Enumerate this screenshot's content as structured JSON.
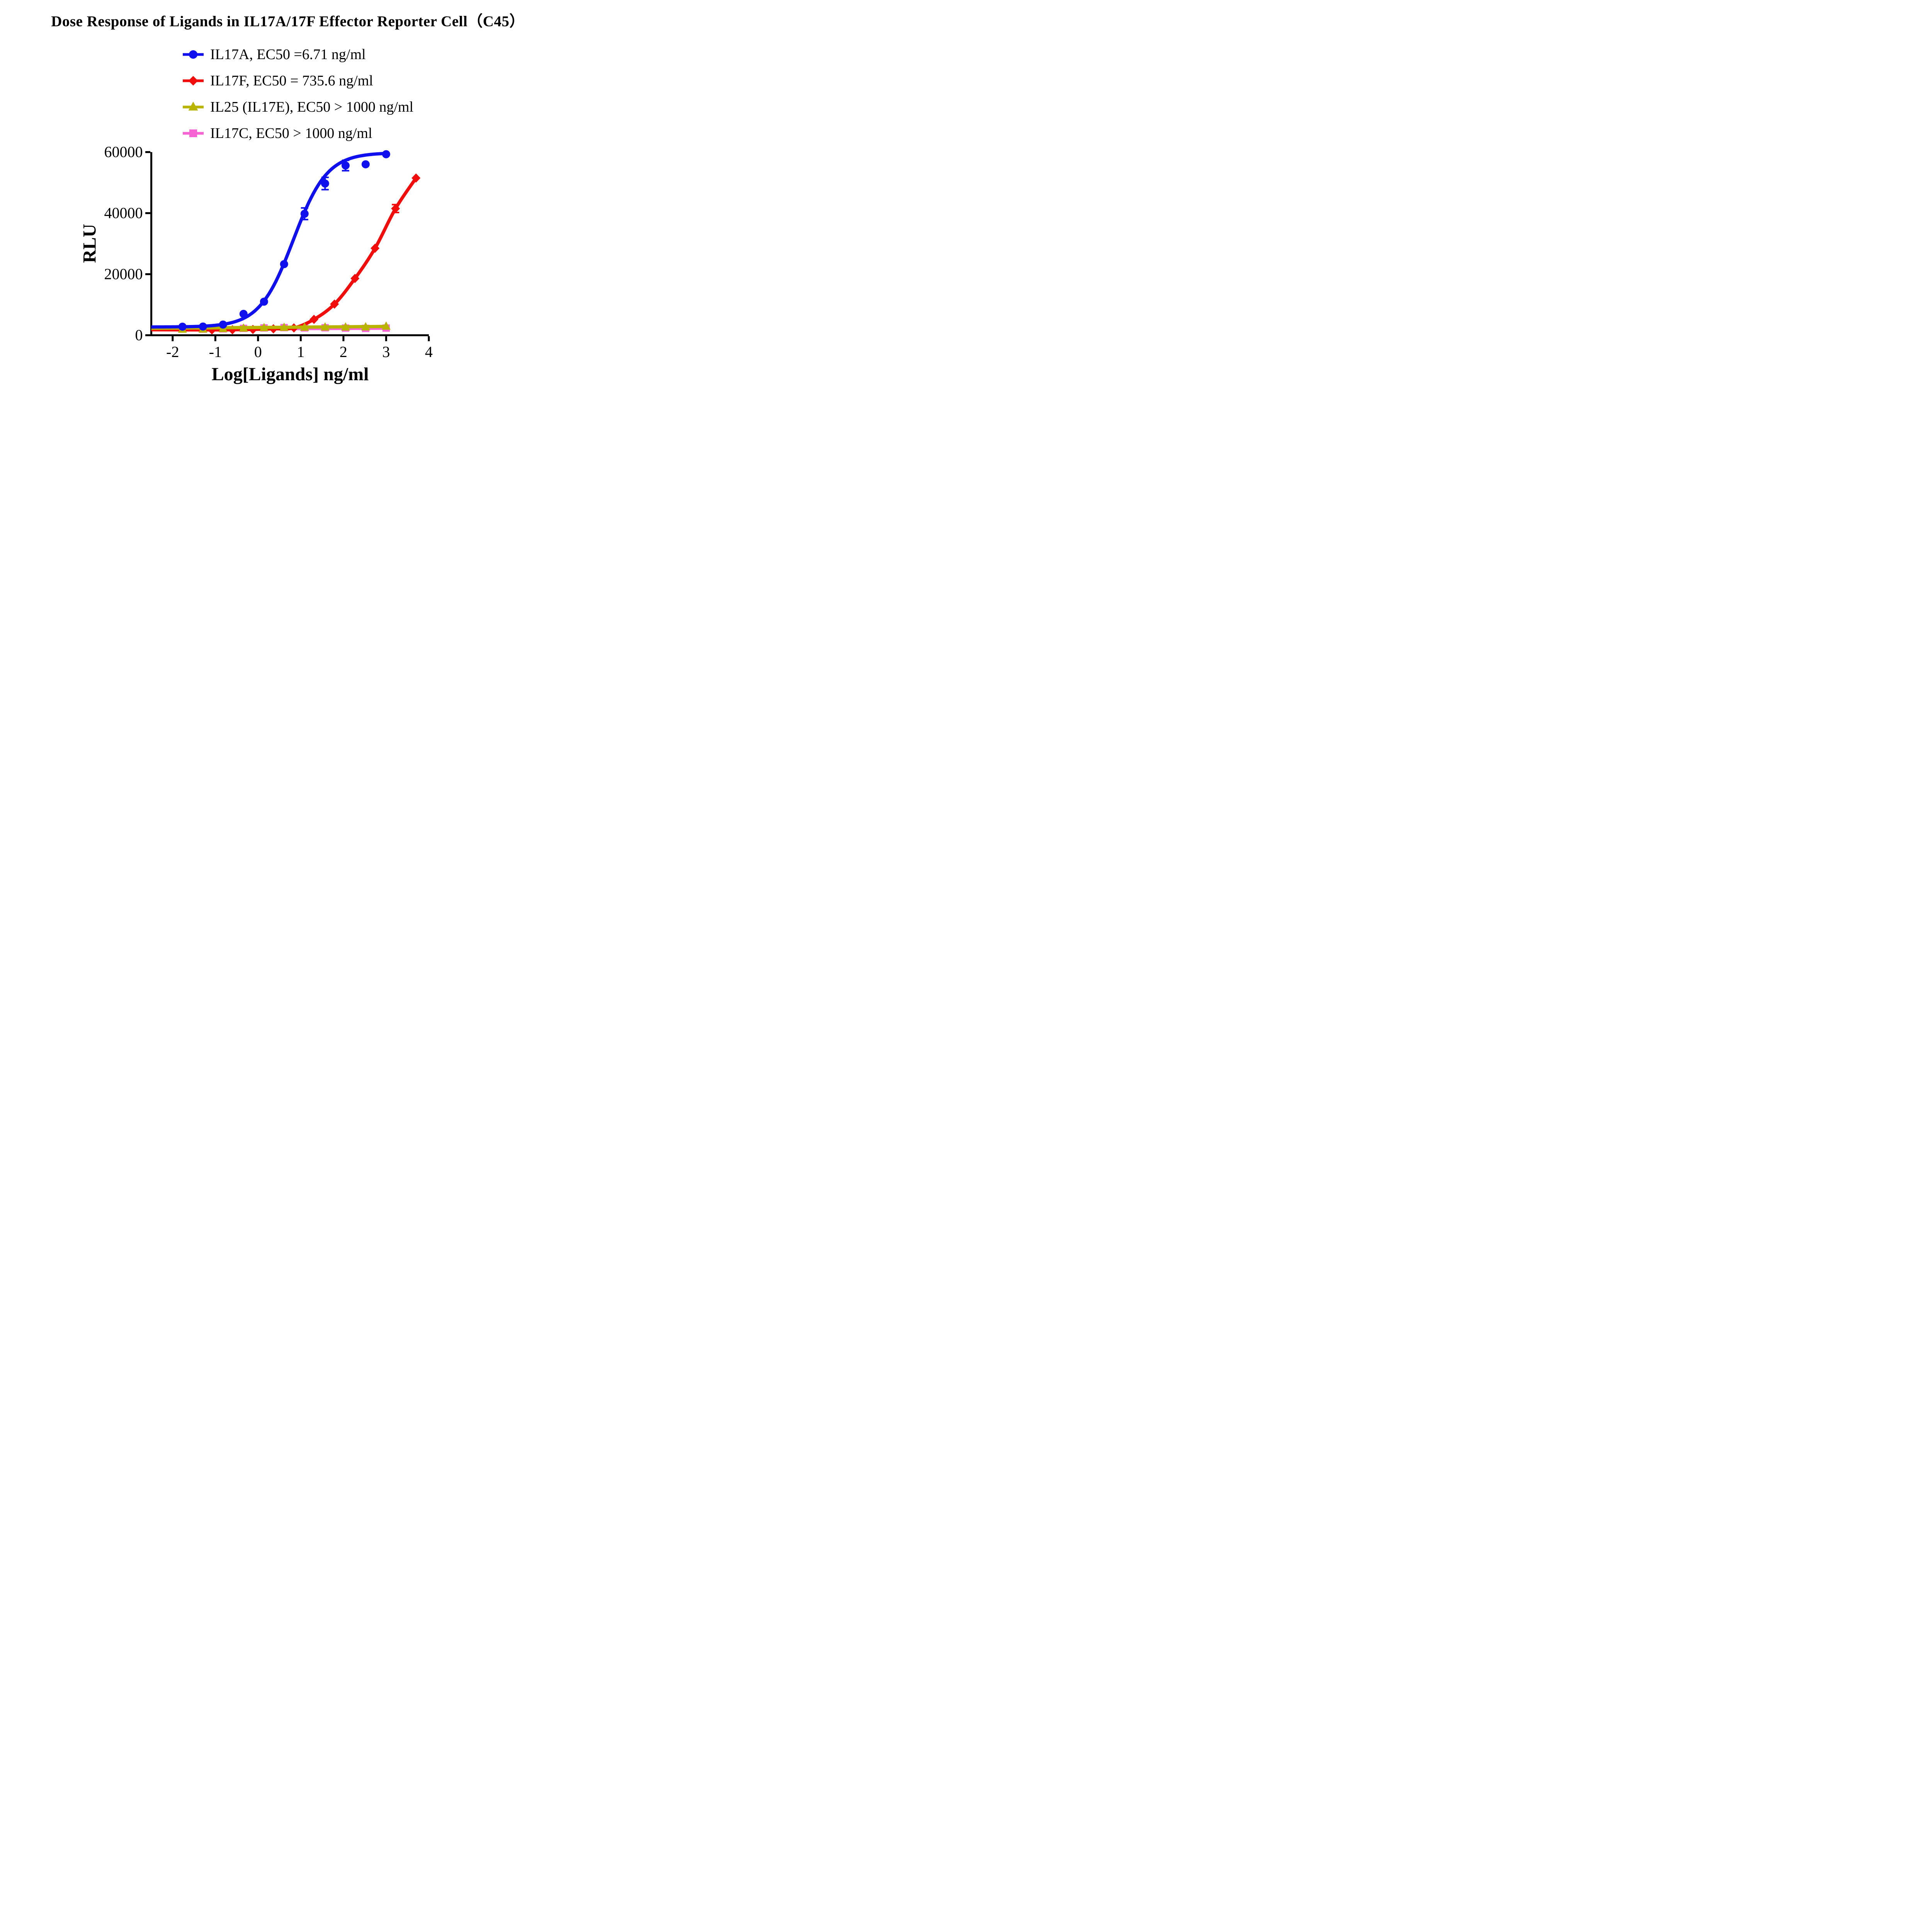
{
  "chart_data": {
    "type": "scatter",
    "title": "Dose Response of Ligands in IL17A/17F Effector Reporter Cell（C45）",
    "xlabel": "Log[Ligands] ng/ml",
    "ylabel": "RLU",
    "xlim": [
      -2.5,
      4
    ],
    "ylim": [
      0,
      60000
    ],
    "x_ticks": [
      -2,
      -1,
      0,
      1,
      2,
      3,
      4
    ],
    "y_ticks": [
      0,
      20000,
      40000,
      60000
    ],
    "grid": false,
    "legend_position": "top-center",
    "background_color": "#ffffff",
    "axis_color": "#000000",
    "series": [
      {
        "name": "IL17A",
        "legend_label": "IL17A, EC50 =6.71 ng/ml",
        "color": "#1010EE",
        "marker": "circle",
        "x": [
          -1.77,
          -1.29,
          -0.82,
          -0.34,
          0.14,
          0.61,
          1.09,
          1.57,
          2.05,
          2.52,
          3.0
        ],
        "y": [
          2800,
          2850,
          3500,
          7000,
          11000,
          23300,
          39800,
          49700,
          55600,
          56000,
          59300
        ],
        "err": [
          0,
          0,
          0,
          0,
          0,
          0,
          1900,
          2000,
          1700,
          0,
          0
        ],
        "fit": {
          "type": "4pl",
          "bottom": 2700,
          "top": 59800,
          "logec50": 0.827,
          "hill": 1.1,
          "x_start": -2.5,
          "x_end": 3.0
        }
      },
      {
        "name": "IL17F",
        "legend_label": "IL17F, EC50 = 735.6 ng/ml",
        "color": "#F20D0D",
        "marker": "diamond",
        "x": [
          -1.08,
          -0.6,
          -0.12,
          0.36,
          0.84,
          1.31,
          1.79,
          2.27,
          2.74,
          3.22,
          3.7
        ],
        "y": [
          1750,
          1800,
          1900,
          2100,
          2400,
          5200,
          10200,
          18600,
          28500,
          41500,
          51500
        ],
        "err": [
          0,
          0,
          0,
          0,
          0,
          0,
          0,
          0,
          0,
          1300,
          0
        ],
        "fit": {
          "type": "spline",
          "x_start": -2.5,
          "y_start": 1800
        }
      },
      {
        "name": "IL25 (IL17E)",
        "legend_label": "IL25 (IL17E), EC50 > 1000 ng/ml",
        "color": "#B8B400",
        "marker": "triangle",
        "x": [
          -1.77,
          -1.29,
          -0.82,
          -0.34,
          0.14,
          0.61,
          1.09,
          1.57,
          2.05,
          2.52,
          3.0
        ],
        "y": [
          1900,
          1950,
          2100,
          2250,
          2400,
          2500,
          2550,
          2600,
          2600,
          2650,
          2900
        ],
        "err": [
          0,
          0,
          0,
          0,
          0,
          0,
          0,
          0,
          0,
          0,
          0
        ],
        "fit": {
          "type": "linear",
          "y_at_0": 2550,
          "slope": 110,
          "x_start": -2.5,
          "x_end": 3.05
        }
      },
      {
        "name": "IL17C",
        "legend_label": "IL17C, EC50 > 1000 ng/ml",
        "color": "#F564D2",
        "marker": "square",
        "x": [
          -1.77,
          -1.29,
          -0.82,
          -0.34,
          0.14,
          0.61,
          1.09,
          1.57,
          2.05,
          2.52,
          3.0
        ],
        "y": [
          2050,
          2000,
          2100,
          2250,
          2400,
          2500,
          2400,
          2450,
          2350,
          2250,
          2350
        ],
        "err": [
          0,
          0,
          0,
          0,
          0,
          0,
          0,
          0,
          0,
          0,
          0
        ],
        "fit": {
          "type": "linear",
          "y_at_0": 2120,
          "slope": 60,
          "x_start": -2.5,
          "x_end": 3.0
        }
      }
    ]
  }
}
